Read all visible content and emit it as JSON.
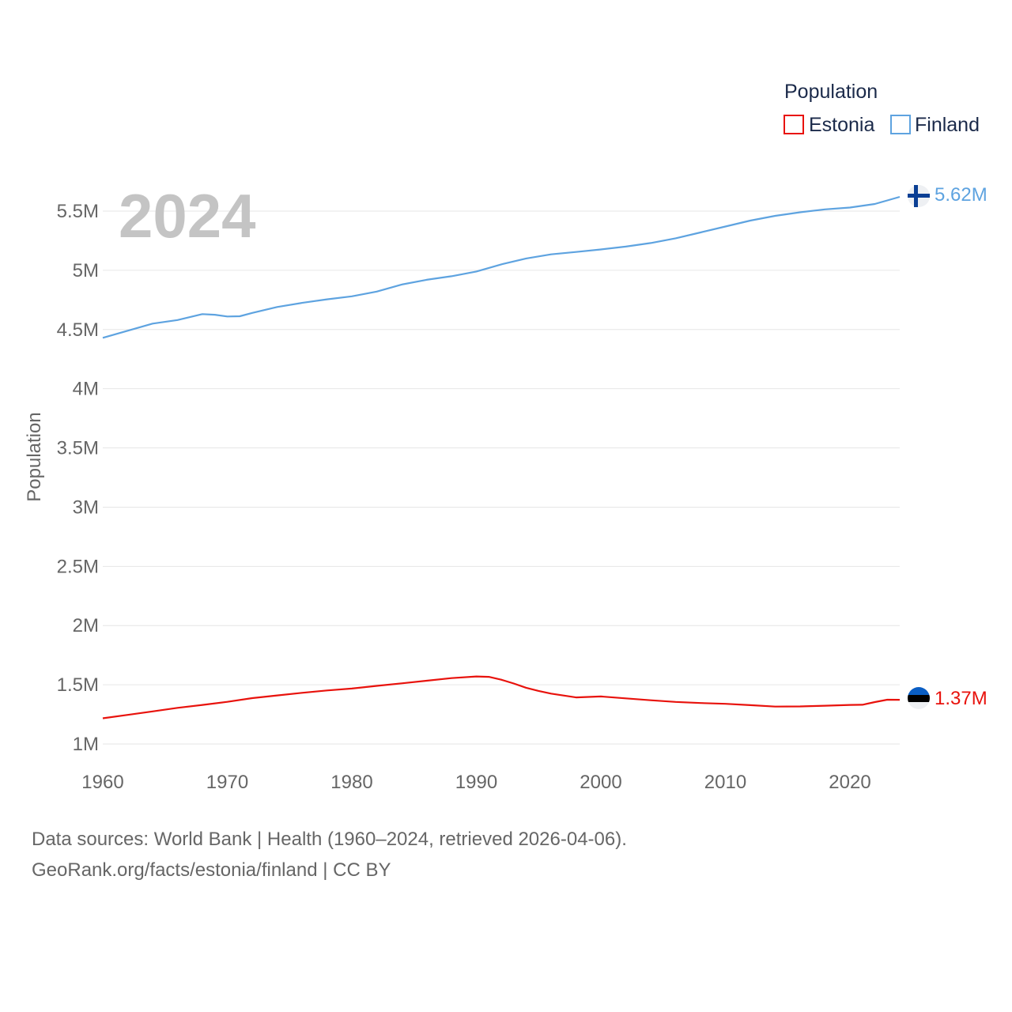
{
  "chart_data": {
    "type": "line",
    "title": "Population",
    "ylabel": "Population",
    "xlabel": "",
    "year_label": "2024",
    "xlim": [
      1960,
      2024
    ],
    "ylim": [
      900000,
      5800000
    ],
    "x_ticks": [
      1960,
      1970,
      1980,
      1990,
      2000,
      2010,
      2020
    ],
    "y_ticks": [
      {
        "value": 1000000,
        "label": "1M"
      },
      {
        "value": 1500000,
        "label": "1.5M"
      },
      {
        "value": 2000000,
        "label": "2M"
      },
      {
        "value": 2500000,
        "label": "2.5M"
      },
      {
        "value": 3000000,
        "label": "3M"
      },
      {
        "value": 3500000,
        "label": "3.5M"
      },
      {
        "value": 4000000,
        "label": "4M"
      },
      {
        "value": 4500000,
        "label": "4.5M"
      },
      {
        "value": 5000000,
        "label": "5M"
      },
      {
        "value": 5500000,
        "label": "5.5M"
      }
    ],
    "legend_title": "Population",
    "series": [
      {
        "name": "Estonia",
        "color": "#e8120c",
        "end_label": "1.37M",
        "flag": "estonia-flag",
        "x": [
          1960,
          1962,
          1964,
          1966,
          1968,
          1970,
          1972,
          1974,
          1976,
          1978,
          1980,
          1982,
          1984,
          1986,
          1988,
          1990,
          1991,
          1992,
          1993,
          1994,
          1995,
          1996,
          1998,
          2000,
          2002,
          2004,
          2006,
          2008,
          2010,
          2012,
          2014,
          2016,
          2018,
          2020,
          2021,
          2022,
          2023,
          2024
        ],
        "values": [
          1217000,
          1246000,
          1275000,
          1305000,
          1330000,
          1356000,
          1387000,
          1410000,
          1432000,
          1452000,
          1468000,
          1491000,
          1512000,
          1534000,
          1556000,
          1570000,
          1567000,
          1543000,
          1511000,
          1475000,
          1448000,
          1425000,
          1393000,
          1401000,
          1385000,
          1369000,
          1355000,
          1346000,
          1339000,
          1328000,
          1316000,
          1317000,
          1323000,
          1330000,
          1331000,
          1354000,
          1374000,
          1373000
        ]
      },
      {
        "name": "Finland",
        "color": "#5ea3e0",
        "end_label": "5.62M",
        "flag": "finland-flag",
        "x": [
          1960,
          1962,
          1964,
          1966,
          1968,
          1969,
          1970,
          1971,
          1972,
          1974,
          1976,
          1978,
          1980,
          1982,
          1984,
          1986,
          1988,
          1990,
          1992,
          1994,
          1996,
          1998,
          2000,
          2002,
          2004,
          2006,
          2008,
          2010,
          2012,
          2014,
          2016,
          2018,
          2020,
          2022,
          2023,
          2024
        ],
        "values": [
          4430000,
          4490000,
          4550000,
          4580000,
          4630000,
          4625000,
          4610000,
          4612000,
          4640000,
          4690000,
          4725000,
          4755000,
          4780000,
          4820000,
          4880000,
          4920000,
          4950000,
          4990000,
          5050000,
          5100000,
          5135000,
          5155000,
          5176000,
          5200000,
          5230000,
          5270000,
          5320000,
          5370000,
          5420000,
          5460000,
          5490000,
          5515000,
          5530000,
          5560000,
          5590000,
          5620000
        ]
      }
    ]
  },
  "footer": {
    "line1": "Data sources: World Bank | Health (1960–2024, retrieved 2026-04-06).",
    "line2": "GeoRank.org/facts/estonia/finland | CC BY"
  }
}
